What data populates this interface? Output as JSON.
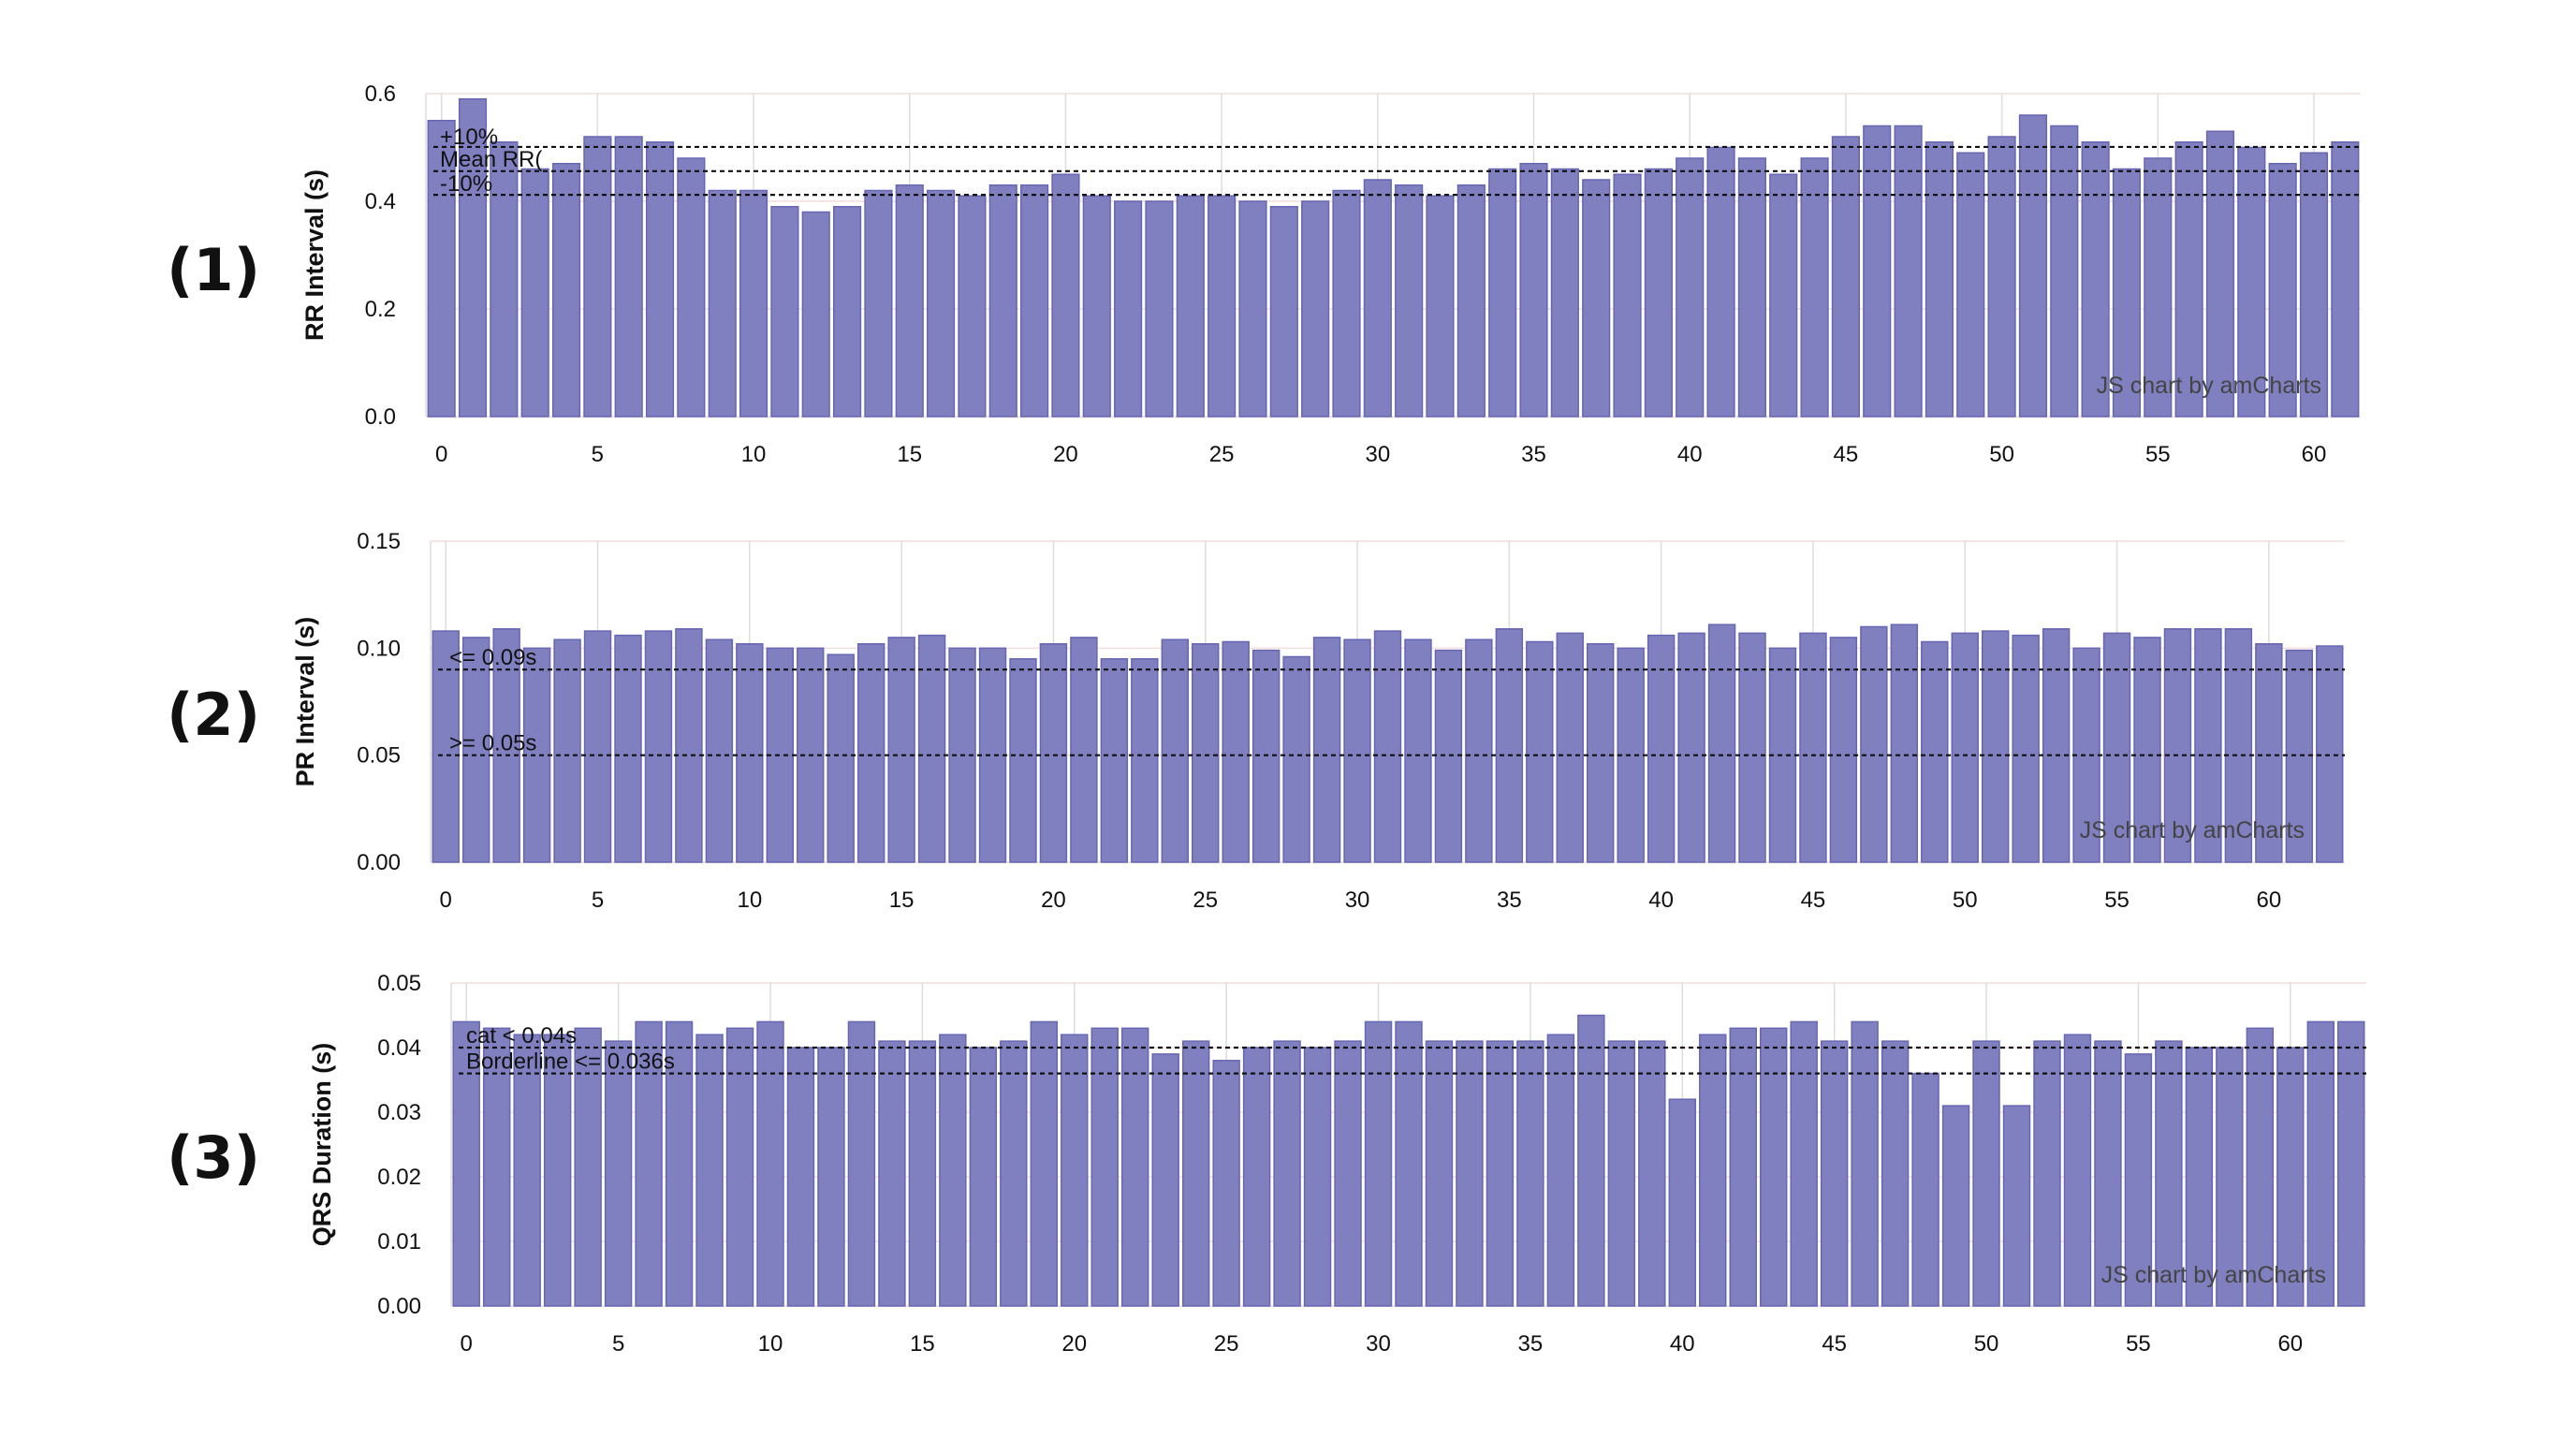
{
  "chart_data": [
    {
      "type": "bar",
      "panel_label": "(1)",
      "ylabel": "RR Interval (s)",
      "credit": "JS chart by amCharts",
      "ylim": [
        0,
        0.6
      ],
      "yticks": [
        "0.0",
        "0.2",
        "0.4",
        "0.6"
      ],
      "yticks_values": [
        0,
        0.2,
        0.4,
        0.6
      ],
      "xticks": [
        "0",
        "5",
        "10",
        "15",
        "20",
        "25",
        "30",
        "35",
        "40",
        "45",
        "50",
        "55",
        "60"
      ],
      "xticks_values": [
        0,
        5,
        10,
        15,
        20,
        25,
        30,
        35,
        40,
        45,
        50,
        55,
        60
      ],
      "xlim": [
        -0.5,
        61.5
      ],
      "values": [
        0.55,
        0.59,
        0.51,
        0.46,
        0.47,
        0.52,
        0.52,
        0.51,
        0.48,
        0.42,
        0.42,
        0.39,
        0.38,
        0.39,
        0.42,
        0.43,
        0.42,
        0.41,
        0.43,
        0.43,
        0.45,
        0.41,
        0.4,
        0.4,
        0.41,
        0.41,
        0.4,
        0.39,
        0.4,
        0.42,
        0.44,
        0.43,
        0.41,
        0.43,
        0.46,
        0.47,
        0.46,
        0.44,
        0.45,
        0.46,
        0.48,
        0.5,
        0.48,
        0.45,
        0.48,
        0.52,
        0.54,
        0.54,
        0.51,
        0.49,
        0.52,
        0.56,
        0.54,
        0.51,
        0.46,
        0.48,
        0.51,
        0.53,
        0.5,
        0.47,
        0.49,
        0.51
      ],
      "ref_lines": [
        {
          "label": "+10%",
          "value": 0.501
        },
        {
          "label": "Mean RR(",
          "value": 0.456
        },
        {
          "label": "-10%",
          "value": 0.412
        }
      ]
    },
    {
      "type": "bar",
      "panel_label": "(2)",
      "ylabel": "PR Interval (s)",
      "credit": "JS chart by amCharts",
      "ylim": [
        0,
        0.15
      ],
      "yticks": [
        "0.00",
        "0.05",
        "0.10",
        "0.15"
      ],
      "yticks_values": [
        0,
        0.05,
        0.1,
        0.15
      ],
      "xticks": [
        "0",
        "5",
        "10",
        "15",
        "20",
        "25",
        "30",
        "35",
        "40",
        "45",
        "50",
        "55",
        "60"
      ],
      "xticks_values": [
        0,
        5,
        10,
        15,
        20,
        25,
        30,
        35,
        40,
        45,
        50,
        55,
        60
      ],
      "xlim": [
        -0.5,
        62.5
      ],
      "values": [
        0.108,
        0.105,
        0.109,
        0.1,
        0.104,
        0.108,
        0.106,
        0.108,
        0.109,
        0.104,
        0.102,
        0.1,
        0.1,
        0.097,
        0.102,
        0.105,
        0.106,
        0.1,
        0.1,
        0.095,
        0.102,
        0.105,
        0.095,
        0.095,
        0.104,
        0.102,
        0.103,
        0.099,
        0.096,
        0.105,
        0.104,
        0.108,
        0.104,
        0.099,
        0.104,
        0.109,
        0.103,
        0.107,
        0.102,
        0.1,
        0.106,
        0.107,
        0.111,
        0.107,
        0.1,
        0.107,
        0.105,
        0.11,
        0.111,
        0.103,
        0.107,
        0.108,
        0.106,
        0.109,
        0.1,
        0.107,
        0.105,
        0.109,
        0.109,
        0.109,
        0.102,
        0.099,
        0.101
      ],
      "ref_lines": [
        {
          "label": "<= 0.09s",
          "value": 0.09
        },
        {
          "label": ">= 0.05s",
          "value": 0.05
        }
      ]
    },
    {
      "type": "bar",
      "panel_label": "(3)",
      "ylabel": "QRS Duration (s)",
      "credit": "JS chart by amCharts",
      "ylim": [
        0,
        0.05
      ],
      "yticks": [
        "0.00",
        "0.01",
        "0.02",
        "0.03",
        "0.04",
        "0.05"
      ],
      "yticks_values": [
        0,
        0.01,
        0.02,
        0.03,
        0.04,
        0.05
      ],
      "xticks": [
        "0",
        "5",
        "10",
        "15",
        "20",
        "25",
        "30",
        "35",
        "40",
        "45",
        "50",
        "55",
        "60"
      ],
      "xticks_values": [
        0,
        5,
        10,
        15,
        20,
        25,
        30,
        35,
        40,
        45,
        50,
        55,
        60
      ],
      "xlim": [
        -0.5,
        62.5
      ],
      "values": [
        0.044,
        0.043,
        0.042,
        0.042,
        0.043,
        0.041,
        0.044,
        0.044,
        0.042,
        0.043,
        0.044,
        0.04,
        0.04,
        0.044,
        0.041,
        0.041,
        0.042,
        0.04,
        0.041,
        0.044,
        0.042,
        0.043,
        0.043,
        0.039,
        0.041,
        0.038,
        0.04,
        0.041,
        0.04,
        0.041,
        0.044,
        0.044,
        0.041,
        0.041,
        0.041,
        0.041,
        0.042,
        0.045,
        0.041,
        0.041,
        0.032,
        0.042,
        0.043,
        0.043,
        0.044,
        0.041,
        0.044,
        0.041,
        0.036,
        0.031,
        0.041,
        0.031,
        0.041,
        0.042,
        0.041,
        0.039,
        0.041,
        0.04,
        0.04,
        0.043,
        0.04,
        0.044,
        0.044
      ],
      "ref_lines": [
        {
          "label": "cat < 0.04s",
          "value": 0.04
        },
        {
          "label": "Borderline <= 0.036s",
          "value": 0.036
        }
      ]
    }
  ]
}
